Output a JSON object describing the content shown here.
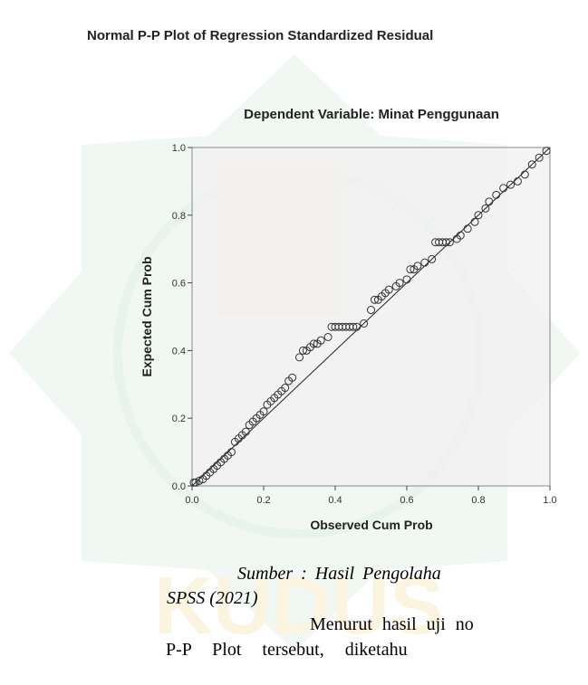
{
  "chart_data": {
    "type": "scatter",
    "title": "Normal P-P Plot of Regression Standardized Residual",
    "subtitle": "Dependent Variable: Minat Penggunaan",
    "x_label": "Observed Cum Prob",
    "y_label": "Expected Cum Prob",
    "xlim": [
      0,
      1
    ],
    "ylim": [
      0,
      1
    ],
    "xticks": [
      {
        "value": 0,
        "label": "0.0"
      },
      0.2,
      0.4,
      0.6,
      0.8,
      {
        "value": 1,
        "label": "1.0"
      }
    ],
    "yticks": [
      {
        "value": 0,
        "label": "0.0"
      },
      0.2,
      0.4,
      0.6,
      0.8,
      {
        "value": 1,
        "label": "1.0"
      }
    ],
    "reference_line": true,
    "x": [
      0.005,
      0.01,
      0.02,
      0.03,
      0.04,
      0.05,
      0.06,
      0.07,
      0.08,
      0.09,
      0.1,
      0.11,
      0.12,
      0.13,
      0.14,
      0.15,
      0.16,
      0.17,
      0.18,
      0.19,
      0.2,
      0.21,
      0.22,
      0.23,
      0.24,
      0.25,
      0.26,
      0.27,
      0.28,
      0.3,
      0.31,
      0.32,
      0.33,
      0.34,
      0.35,
      0.36,
      0.38,
      0.39,
      0.4,
      0.41,
      0.42,
      0.43,
      0.44,
      0.45,
      0.46,
      0.48,
      0.5,
      0.51,
      0.52,
      0.53,
      0.54,
      0.55,
      0.57,
      0.58,
      0.6,
      0.61,
      0.62,
      0.63,
      0.65,
      0.67,
      0.68,
      0.69,
      0.7,
      0.71,
      0.72,
      0.74,
      0.75,
      0.77,
      0.79,
      0.8,
      0.82,
      0.83,
      0.85,
      0.87,
      0.89,
      0.91,
      0.93,
      0.95,
      0.97,
      0.99
    ],
    "values": [
      0.01,
      0.01,
      0.015,
      0.02,
      0.03,
      0.04,
      0.05,
      0.06,
      0.07,
      0.08,
      0.09,
      0.1,
      0.13,
      0.14,
      0.15,
      0.16,
      0.18,
      0.19,
      0.2,
      0.21,
      0.22,
      0.24,
      0.25,
      0.26,
      0.27,
      0.28,
      0.29,
      0.31,
      0.32,
      0.38,
      0.4,
      0.4,
      0.41,
      0.42,
      0.42,
      0.43,
      0.44,
      0.47,
      0.47,
      0.47,
      0.47,
      0.47,
      0.47,
      0.47,
      0.47,
      0.48,
      0.52,
      0.55,
      0.55,
      0.56,
      0.57,
      0.58,
      0.59,
      0.6,
      0.61,
      0.64,
      0.64,
      0.65,
      0.66,
      0.67,
      0.72,
      0.72,
      0.72,
      0.72,
      0.72,
      0.73,
      0.74,
      0.76,
      0.78,
      0.8,
      0.82,
      0.84,
      0.86,
      0.88,
      0.89,
      0.9,
      0.92,
      0.95,
      0.97,
      0.99
    ]
  },
  "document": {
    "caption_line_1": "Sumber : Hasil Pengolaha",
    "caption_line_2": "SPSS (2021)",
    "paragraph_line_1": "Menurut hasil uji no",
    "paragraph_line_2": "P-P Plot tersebut, diketahu"
  }
}
